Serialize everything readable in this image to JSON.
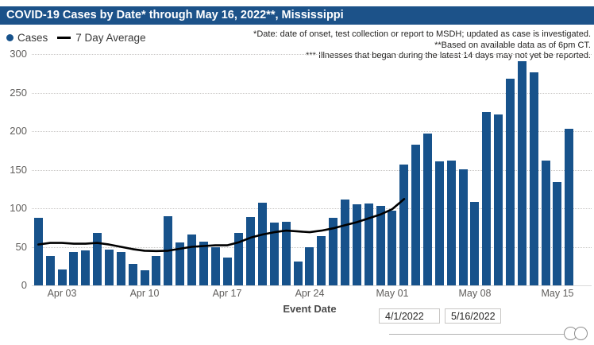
{
  "header": {
    "title": "COVID-19 Cases by Date* through May 16, 2022**, Mississippi"
  },
  "legend": {
    "cases_label": "Cases",
    "avg_label": "7 Day Average"
  },
  "annotations": {
    "line1": "*Date: date of onset, test collection or report to MSDH; updated as case is investigated.",
    "line2": "**Based on available data as of 6pm CT.",
    "line3": "*** Illnesses that began during the latest 14 days may not yet be reported."
  },
  "axis": {
    "x_title": "Event Date"
  },
  "slicer": {
    "start_value": "4/1/2022",
    "end_value": "5/16/2022"
  },
  "colors": {
    "header_bg": "#1C5289",
    "bar": "#17528B",
    "avg_line": "#000000",
    "axis_text": "#605E5C",
    "gridline": "#C8C6C4",
    "slider": "#B3B3B3"
  },
  "chart_data": {
    "type": "bar",
    "title": "COVID-19 Cases by Date* through May 16, 2022**, Mississippi",
    "xlabel": "Event Date",
    "ylabel": "",
    "ylim": [
      0,
      300
    ],
    "yticks": [
      0,
      50,
      100,
      150,
      200,
      250,
      300
    ],
    "grid": true,
    "legend_position": "top-left",
    "categories": [
      "Apr 1",
      "Apr 2",
      "Apr 3",
      "Apr 4",
      "Apr 5",
      "Apr 6",
      "Apr 7",
      "Apr 8",
      "Apr 9",
      "Apr 10",
      "Apr 11",
      "Apr 12",
      "Apr 13",
      "Apr 14",
      "Apr 15",
      "Apr 16",
      "Apr 17",
      "Apr 18",
      "Apr 19",
      "Apr 20",
      "Apr 21",
      "Apr 22",
      "Apr 23",
      "Apr 24",
      "Apr 25",
      "Apr 26",
      "Apr 27",
      "Apr 28",
      "Apr 29",
      "Apr 30",
      "May 1",
      "May 2",
      "May 3",
      "May 4",
      "May 5",
      "May 6",
      "May 7",
      "May 8",
      "May 9",
      "May 10",
      "May 11",
      "May 12",
      "May 13",
      "May 14",
      "May 15",
      "May 16"
    ],
    "xticks": [
      {
        "label": "Apr 03",
        "index": 2
      },
      {
        "label": "Apr 10",
        "index": 9
      },
      {
        "label": "Apr 17",
        "index": 16
      },
      {
        "label": "Apr 24",
        "index": 23
      },
      {
        "label": "May 01",
        "index": 30
      },
      {
        "label": "May 08",
        "index": 37
      },
      {
        "label": "May 15",
        "index": 44
      }
    ],
    "series": [
      {
        "name": "Cases",
        "type": "bar",
        "values": [
          88,
          38,
          21,
          43,
          45,
          68,
          46,
          43,
          28,
          20,
          38,
          90,
          56,
          66,
          57,
          50,
          36,
          68,
          89,
          107,
          81,
          82,
          31,
          49,
          64,
          88,
          111,
          105,
          106,
          103,
          97,
          157,
          182,
          197,
          161,
          162,
          151,
          108,
          225,
          222,
          268,
          291,
          276,
          162,
          134,
          203
        ]
      },
      {
        "name": "7 Day Average",
        "type": "line",
        "values": [
          53,
          55,
          55,
          54,
          54,
          55,
          53,
          50,
          47,
          45,
          44.5,
          45,
          47.5,
          50,
          51,
          52,
          52,
          56,
          62,
          66,
          69,
          71,
          70,
          69,
          71,
          74,
          78,
          82,
          87,
          92,
          99,
          112,
          null,
          null,
          null,
          null,
          null,
          null,
          null,
          null,
          null,
          null,
          null,
          null,
          null,
          null
        ]
      }
    ]
  }
}
